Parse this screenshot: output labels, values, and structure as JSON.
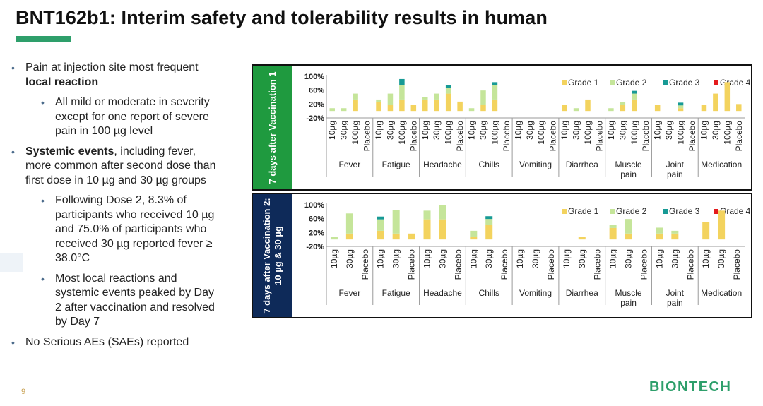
{
  "slide": {
    "title": "BNT162b1:  Interim safety and tolerability results in human",
    "page_number": "9",
    "logo": "BIONTECH"
  },
  "bullets": {
    "b1_pre": "Pain at injection site most frequent ",
    "b1_bold": "local reaction",
    "b1_sub": "All mild or moderate in severity except for one report of severe pain in 100 µg level",
    "b2_bold": "Systemic events",
    "b2_rest": ", including fever, more common after second dose than first dose in 10 µg and 30 µg groups",
    "b2_sub1": "Following Dose 2, 8.3% of participants who received 10 µg and 75.0% of participants who received 30 µg reported fever ≥ 38.0°C",
    "b2_sub2": "Most local reactions and systemic events peaked by Day 2 after vaccination and resolved by Day 7",
    "b3": "No Serious AEs (SAEs) reported"
  },
  "panels": {
    "p1_label": "7 days after Vaccination 1",
    "p2_label": "7 days after Vaccination 2: 10 µg & 30 µg"
  },
  "colors": {
    "grade1": "#f3d35e",
    "grade2": "#c5e59a",
    "grade3": "#179a95",
    "grade4": "#e41a1c",
    "tab1": "#1f9a3f",
    "tab2": "#0e2a59",
    "accent": "#2e9f6b"
  },
  "chart_data": [
    {
      "type": "bar",
      "stacked": true,
      "title": "",
      "yticks": [
        "100%",
        "60%",
        "20%",
        "-20%"
      ],
      "ylim": [
        -20,
        100
      ],
      "legend": [
        "Grade 1",
        "Grade 2",
        "Grade 3",
        "Grade 4"
      ],
      "legend_position": "top-right",
      "categories": [
        "Fever",
        "Fatigue",
        "Headache",
        "Chills",
        "Vomiting",
        "Diarrhea",
        "Muscle pain",
        "Joint pain",
        "Medication"
      ],
      "doses": [
        "10µg",
        "30µg",
        "100µg",
        "Placebo"
      ],
      "series": [
        {
          "name": "Grade 1",
          "values": [
            [
              0,
              0,
              33,
              0
            ],
            [
              25,
              17,
              33,
              17
            ],
            [
              33,
              33,
              50,
              27
            ],
            [
              0,
              17,
              33,
              0
            ],
            [
              0,
              0,
              0,
              0
            ],
            [
              17,
              0,
              33,
              0
            ],
            [
              0,
              17,
              33,
              0
            ],
            [
              17,
              0,
              8,
              0
            ],
            [
              17,
              50,
              83,
              20
            ]
          ]
        },
        {
          "name": "Grade 2",
          "values": [
            [
              8,
              8,
              17,
              0
            ],
            [
              8,
              33,
              42,
              0
            ],
            [
              8,
              17,
              17,
              0
            ],
            [
              8,
              42,
              42,
              0
            ],
            [
              0,
              0,
              0,
              0
            ],
            [
              0,
              8,
              0,
              0
            ],
            [
              8,
              8,
              17,
              0
            ],
            [
              0,
              0,
              8,
              0
            ],
            [
              0,
              0,
              0,
              0
            ]
          ]
        },
        {
          "name": "Grade 3",
          "values": [
            [
              0,
              0,
              0,
              0
            ],
            [
              0,
              0,
              17,
              0
            ],
            [
              0,
              0,
              8,
              0
            ],
            [
              0,
              0,
              8,
              0
            ],
            [
              0,
              0,
              0,
              0
            ],
            [
              0,
              0,
              0,
              0
            ],
            [
              0,
              0,
              8,
              0
            ],
            [
              0,
              0,
              8,
              0
            ],
            [
              0,
              0,
              0,
              0
            ]
          ]
        },
        {
          "name": "Grade 4",
          "values": [
            [
              0,
              0,
              0,
              0
            ],
            [
              0,
              0,
              0,
              0
            ],
            [
              0,
              0,
              0,
              0
            ],
            [
              0,
              0,
              0,
              0
            ],
            [
              0,
              0,
              0,
              0
            ],
            [
              0,
              0,
              0,
              0
            ],
            [
              0,
              0,
              0,
              0
            ],
            [
              0,
              0,
              0,
              0
            ],
            [
              0,
              0,
              0,
              0
            ]
          ]
        }
      ]
    },
    {
      "type": "bar",
      "stacked": true,
      "title": "",
      "yticks": [
        "100%",
        "60%",
        "20%",
        "-20%"
      ],
      "ylim": [
        -20,
        100
      ],
      "legend": [
        "Grade 1",
        "Grade 2",
        "Grade 3",
        "Grade 4"
      ],
      "legend_position": "top-right",
      "categories": [
        "Fever",
        "Fatigue",
        "Headache",
        "Chills",
        "Vomiting",
        "Diarrhea",
        "Muscle pain",
        "Joint pain",
        "Medication"
      ],
      "doses": [
        "10µg",
        "30µg",
        "Placebo"
      ],
      "series": [
        {
          "name": "Grade 1",
          "values": [
            [
              0,
              17,
              0
            ],
            [
              25,
              17,
              17
            ],
            [
              58,
              58,
              0
            ],
            [
              8,
              42,
              0
            ],
            [
              0,
              0,
              0
            ],
            [
              0,
              8,
              0
            ],
            [
              33,
              17,
              0
            ],
            [
              17,
              17,
              0
            ],
            [
              50,
              83,
              0
            ]
          ]
        },
        {
          "name": "Grade 2",
          "values": [
            [
              8,
              58,
              0
            ],
            [
              33,
              67,
              0
            ],
            [
              25,
              42,
              0
            ],
            [
              17,
              17,
              0
            ],
            [
              0,
              0,
              0
            ],
            [
              0,
              0,
              0
            ],
            [
              8,
              42,
              0
            ],
            [
              17,
              8,
              0
            ],
            [
              0,
              0,
              0
            ]
          ]
        },
        {
          "name": "Grade 3",
          "values": [
            [
              0,
              0,
              0
            ],
            [
              8,
              0,
              0
            ],
            [
              0,
              0,
              0
            ],
            [
              0,
              8,
              0
            ],
            [
              0,
              0,
              0
            ],
            [
              0,
              0,
              0
            ],
            [
              0,
              0,
              0
            ],
            [
              0,
              0,
              0
            ],
            [
              0,
              0,
              0
            ]
          ]
        },
        {
          "name": "Grade 4",
          "values": [
            [
              0,
              0,
              0
            ],
            [
              0,
              0,
              0
            ],
            [
              0,
              0,
              0
            ],
            [
              0,
              0,
              0
            ],
            [
              0,
              0,
              0
            ],
            [
              0,
              0,
              0
            ],
            [
              0,
              0,
              0
            ],
            [
              0,
              0,
              0
            ],
            [
              0,
              0,
              0
            ]
          ]
        }
      ]
    }
  ]
}
